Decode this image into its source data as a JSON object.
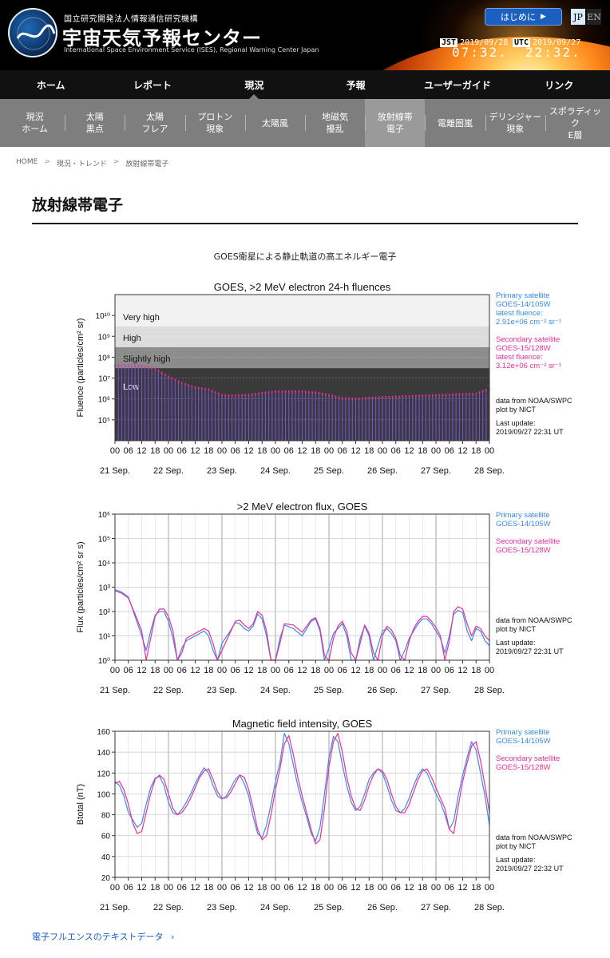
{
  "header": {
    "org_small": "国立研究開発法人情報通信研究機構",
    "org_title": "宇宙天気予報センター",
    "org_en": "International Space Environment Service (ISES), Regional Warning Center Japan",
    "logo_ring_text": "International Space Environment Service · Regional Warning Center Japan",
    "intro_button": "はじめに",
    "lang_jp": "JP",
    "lang_en": "EN",
    "jst_label": "JST",
    "jst_date": "2019/09/28",
    "jst_time": "07:32.",
    "utc_label": "UTC",
    "utc_date": "2019/09/27",
    "utc_time": "22:32."
  },
  "nav": [
    "ホーム",
    "レポート",
    "現況",
    "予報",
    "ユーザーガイド",
    "リンク"
  ],
  "nav_active_index": 2,
  "subnav": [
    [
      "現況",
      "ホーム"
    ],
    [
      "太陽",
      "黒点"
    ],
    [
      "太陽",
      "フレア"
    ],
    [
      "プロトン",
      "現象"
    ],
    [
      "太陽風"
    ],
    [
      "地磁気",
      "擾乱"
    ],
    [
      "放射線帯",
      "電子"
    ],
    [
      "電離圏嵐"
    ],
    [
      "デリンジャー",
      "現象"
    ],
    [
      "スポラディック",
      "E層"
    ]
  ],
  "subnav_active_index": 6,
  "breadcrumb": [
    "HOME",
    "現況・トレンド",
    "放射線帯電子"
  ],
  "page_title": "放射線帯電子",
  "subtitle": "GOES衛星による静止軌道の高エネルギー電子",
  "link_text": "電子フルエンスのテキストデータ",
  "colors": {
    "primary": "#3a8be8",
    "secondary": "#e8309a",
    "accent": "#1b5fbf"
  },
  "chart_data": [
    {
      "type": "bar",
      "title": "GOES, >2 MeV electron 24-h fluences",
      "ylabel": "Fluence (particles/cm² sr)",
      "y_scale": "log",
      "ylim": [
        10000,
        100000000000
      ],
      "y_tick_labels": [
        "10⁵",
        "10⁶",
        "10⁷",
        "10⁸",
        "10⁹",
        "10¹⁰"
      ],
      "x_hour_labels": [
        "00",
        "06",
        "12",
        "18",
        "00",
        "06",
        "12",
        "18",
        "00",
        "06",
        "12",
        "18",
        "00",
        "06",
        "12",
        "18",
        "00",
        "06",
        "12",
        "18",
        "00",
        "06",
        "12",
        "18",
        "00",
        "06",
        "12",
        "18",
        "00"
      ],
      "x_day_labels": [
        "21 Sep.",
        "22 Sep.",
        "23 Sep.",
        "24 Sep.",
        "25 Sep.",
        "26 Sep.",
        "27 Sep.",
        "28 Sep."
      ],
      "bands": [
        {
          "label": "Very high",
          "from": 3000000000.0,
          "to": 100000000000.0
        },
        {
          "label": "High",
          "from": 300000000.0,
          "to": 3000000000.0
        },
        {
          "label": "Slightly high",
          "from": 30000000.0,
          "to": 300000000.0
        },
        {
          "label": "Low",
          "from": 10000,
          "to": 30000000.0
        }
      ],
      "series_points": {
        "hours": [
          0,
          6,
          12,
          18,
          24,
          30,
          36,
          42,
          48,
          54,
          60,
          66,
          72,
          78,
          84,
          90,
          96,
          102,
          108,
          114,
          120,
          126,
          132,
          138,
          144,
          150,
          156,
          162,
          166,
          168
        ],
        "log10_values": [
          7.6,
          7.6,
          7.58,
          7.45,
          7.05,
          6.75,
          6.55,
          6.45,
          6.18,
          6.15,
          6.18,
          6.28,
          6.35,
          6.35,
          6.35,
          6.3,
          6.18,
          6.03,
          6.0,
          6.05,
          6.08,
          6.1,
          6.13,
          6.15,
          6.17,
          6.2,
          6.22,
          6.25,
          6.42,
          6.47
        ]
      },
      "legend": [
        {
          "lines": [
            "Primary satellite",
            "GOES-14/105W",
            "latest fluence:",
            "2.91e+06 cm⁻² sr⁻¹"
          ],
          "color": "#3a8be8"
        },
        {
          "lines": [
            "Secondary satellite",
            "GOES-15/128W",
            "latest fluence:",
            "3.12e+06 cm⁻² sr⁻¹"
          ],
          "color": "#e8309a"
        }
      ],
      "notes": [
        "data from NOAA/SWPC",
        "plot by NICT",
        "Last update:",
        "2019/09/27 22:31 UT"
      ]
    },
    {
      "type": "line",
      "title": ">2 MeV electron flux, GOES",
      "ylabel": "Flux (particles/cm² sr s)",
      "y_scale": "log",
      "ylim": [
        1,
        1000000
      ],
      "y_tick_labels": [
        "10⁰",
        "10¹",
        "10²",
        "10³",
        "10⁴",
        "10⁵",
        "10⁶"
      ],
      "x_hour_labels": [
        "00",
        "06",
        "12",
        "18",
        "00",
        "06",
        "12",
        "18",
        "00",
        "06",
        "12",
        "18",
        "00",
        "06",
        "12",
        "18",
        "00",
        "06",
        "12",
        "18",
        "00",
        "06",
        "12",
        "18",
        "00",
        "06",
        "12",
        "18",
        "00"
      ],
      "x_day_labels": [
        "21 Sep.",
        "22 Sep.",
        "23 Sep.",
        "24 Sep.",
        "25 Sep.",
        "26 Sep.",
        "27 Sep.",
        "28 Sep."
      ],
      "series": [
        {
          "name": "GOES-14/105W",
          "color": "#3a8be8",
          "hours": [
            0,
            3,
            6,
            9,
            12,
            14,
            16,
            18,
            20,
            22,
            24,
            26,
            28,
            30,
            32,
            36,
            40,
            42,
            44,
            46,
            48,
            51,
            54,
            56,
            58,
            60,
            62,
            64,
            66,
            68,
            70,
            72,
            74,
            76,
            80,
            84,
            88,
            90,
            92,
            94,
            96,
            98,
            100,
            102,
            104,
            106,
            108,
            110,
            112,
            114,
            116,
            118,
            120,
            122,
            124,
            126,
            128,
            130,
            132,
            134,
            136,
            138,
            140,
            142,
            144,
            146,
            148,
            150,
            152,
            154,
            156,
            158,
            160,
            162,
            164,
            166,
            168
          ],
          "log10_values": [
            2.9,
            2.8,
            2.6,
            1.8,
            1.0,
            0.4,
            1.2,
            1.85,
            2.0,
            2.0,
            1.6,
            0.9,
            0.0,
            0.5,
            0.8,
            1.0,
            1.2,
            1.0,
            0.4,
            0.0,
            0.7,
            1.1,
            1.55,
            1.5,
            1.3,
            1.2,
            1.4,
            1.9,
            1.7,
            1.0,
            0.0,
            0.0,
            0.9,
            1.45,
            1.3,
            1.0,
            1.6,
            1.7,
            1.2,
            0.0,
            0.5,
            1.1,
            1.3,
            1.5,
            1.0,
            0.0,
            0.0,
            0.9,
            1.4,
            1.0,
            0.0,
            0.6,
            1.2,
            1.3,
            1.1,
            0.8,
            0.0,
            0.4,
            0.9,
            1.2,
            1.5,
            1.7,
            1.7,
            1.5,
            1.2,
            0.9,
            0.3,
            1.0,
            1.9,
            2.05,
            1.95,
            1.2,
            0.8,
            1.3,
            1.2,
            0.8,
            0.6
          ]
        },
        {
          "name": "GOES-15/128W",
          "color": "#e8309a",
          "hours": [
            0,
            3,
            6,
            9,
            12,
            14,
            16,
            18,
            20,
            22,
            24,
            26,
            28,
            30,
            32,
            36,
            40,
            42,
            44,
            46,
            48,
            51,
            54,
            56,
            58,
            60,
            62,
            64,
            66,
            68,
            70,
            72,
            74,
            76,
            80,
            84,
            88,
            90,
            92,
            94,
            96,
            98,
            100,
            102,
            104,
            106,
            108,
            110,
            112,
            114,
            116,
            118,
            120,
            122,
            124,
            126,
            128,
            130,
            132,
            134,
            136,
            138,
            140,
            142,
            144,
            146,
            148,
            150,
            152,
            154,
            156,
            158,
            160,
            162,
            164,
            166,
            168
          ],
          "log10_values": [
            2.85,
            2.75,
            2.55,
            1.9,
            1.2,
            0.0,
            0.9,
            1.8,
            2.1,
            2.1,
            1.8,
            1.2,
            0.0,
            0.3,
            0.9,
            1.1,
            1.3,
            1.2,
            0.7,
            0.0,
            0.4,
            1.0,
            1.6,
            1.65,
            1.45,
            1.3,
            1.5,
            2.0,
            1.85,
            1.2,
            0.0,
            0.0,
            0.7,
            1.5,
            1.45,
            1.15,
            1.65,
            1.75,
            1.3,
            0.2,
            0.0,
            0.9,
            1.4,
            1.6,
            1.2,
            0.3,
            0.0,
            0.7,
            1.45,
            1.1,
            0.3,
            0.0,
            1.0,
            1.4,
            1.25,
            0.9,
            0.2,
            0.0,
            0.8,
            1.3,
            1.6,
            1.8,
            1.8,
            1.6,
            1.35,
            1.0,
            0.0,
            0.8,
            2.0,
            2.2,
            2.1,
            1.5,
            1.0,
            1.4,
            1.3,
            1.0,
            0.8
          ]
        }
      ],
      "legend": [
        {
          "lines": [
            "Primary satellite",
            "GOES-14/105W"
          ],
          "color": "#3a8be8"
        },
        {
          "lines": [
            "Secondary satellite",
            "GOES-15/128W"
          ],
          "color": "#e8309a"
        }
      ],
      "notes": [
        "data from NOAA/SWPC",
        "plot by NICT",
        "Last update:",
        "2019/09/27 22:31 UT"
      ]
    },
    {
      "type": "line",
      "title": "Magnetic field intensity, GOES",
      "ylabel": "Btotal (nT)",
      "y_scale": "linear",
      "ylim": [
        20,
        160
      ],
      "y_tick_labels": [
        "20",
        "40",
        "60",
        "80",
        "100",
        "120",
        "140",
        "160"
      ],
      "x_hour_labels": [
        "00",
        "06",
        "12",
        "18",
        "00",
        "06",
        "12",
        "18",
        "00",
        "06",
        "12",
        "18",
        "00",
        "06",
        "12",
        "18",
        "00",
        "06",
        "12",
        "18",
        "00",
        "06",
        "12",
        "18",
        "00",
        "06",
        "12",
        "18",
        "00"
      ],
      "x_day_labels": [
        "21 Sep.",
        "22 Sep.",
        "23 Sep.",
        "24 Sep.",
        "25 Sep.",
        "26 Sep.",
        "27 Sep.",
        "28 Sep."
      ],
      "series": [
        {
          "name": "GOES-14/105W",
          "color": "#3a8be8",
          "hours": [
            0,
            2,
            4,
            6,
            8,
            10,
            12,
            14,
            16,
            18,
            20,
            22,
            24,
            26,
            28,
            30,
            32,
            34,
            36,
            38,
            40,
            42,
            44,
            46,
            48,
            50,
            52,
            54,
            56,
            58,
            60,
            62,
            64,
            66,
            68,
            70,
            72,
            74,
            76,
            78,
            80,
            82,
            84,
            86,
            88,
            90,
            92,
            94,
            96,
            98,
            100,
            102,
            104,
            106,
            108,
            110,
            112,
            114,
            116,
            118,
            120,
            122,
            124,
            126,
            128,
            130,
            132,
            134,
            136,
            138,
            140,
            142,
            144,
            146,
            148,
            150,
            152,
            154,
            156,
            158,
            160,
            162,
            164,
            166,
            168
          ],
          "values": [
            112,
            108,
            98,
            82,
            75,
            68,
            72,
            90,
            106,
            115,
            117,
            108,
            92,
            82,
            80,
            85,
            92,
            100,
            110,
            118,
            125,
            120,
            108,
            98,
            95,
            98,
            106,
            114,
            118,
            110,
            98,
            78,
            62,
            58,
            70,
            90,
            112,
            130,
            158,
            148,
            128,
            108,
            92,
            78,
            62,
            55,
            68,
            100,
            135,
            155,
            150,
            128,
            108,
            92,
            84,
            88,
            100,
            114,
            120,
            124,
            120,
            108,
            94,
            84,
            82,
            86,
            96,
            108,
            118,
            124,
            120,
            110,
            100,
            92,
            80,
            66,
            74,
            98,
            118,
            135,
            150,
            142,
            120,
            98,
            70
          ]
        },
        {
          "name": "GOES-15/128W",
          "color": "#e8309a",
          "hours": [
            0,
            2,
            4,
            6,
            8,
            10,
            12,
            14,
            16,
            18,
            20,
            22,
            24,
            26,
            28,
            30,
            32,
            34,
            36,
            38,
            40,
            42,
            44,
            46,
            48,
            50,
            52,
            54,
            56,
            58,
            60,
            62,
            64,
            66,
            68,
            70,
            72,
            74,
            76,
            78,
            80,
            82,
            84,
            86,
            88,
            90,
            92,
            94,
            96,
            98,
            100,
            102,
            104,
            106,
            108,
            110,
            112,
            114,
            116,
            118,
            120,
            122,
            124,
            126,
            128,
            130,
            132,
            134,
            136,
            138,
            140,
            142,
            144,
            146,
            148,
            150,
            152,
            154,
            156,
            158,
            160,
            162,
            164,
            166,
            168
          ],
          "values": [
            110,
            112,
            104,
            90,
            72,
            62,
            64,
            82,
            100,
            114,
            118,
            114,
            100,
            86,
            80,
            82,
            88,
            96,
            106,
            116,
            122,
            124,
            114,
            102,
            96,
            96,
            102,
            110,
            118,
            116,
            104,
            86,
            66,
            56,
            60,
            80,
            104,
            124,
            148,
            156,
            138,
            116,
            98,
            82,
            66,
            52,
            56,
            86,
            126,
            150,
            158,
            140,
            116,
            98,
            86,
            84,
            94,
            108,
            118,
            124,
            122,
            114,
            100,
            88,
            82,
            82,
            90,
            102,
            114,
            122,
            124,
            116,
            106,
            96,
            86,
            66,
            62,
            88,
            112,
            130,
            146,
            150,
            132,
            108,
            82
          ]
        }
      ],
      "legend": [
        {
          "lines": [
            "Primary satellite",
            "GOES-14/105W"
          ],
          "color": "#3a8be8"
        },
        {
          "lines": [
            "Secondary satellite",
            "GOES-15/128W"
          ],
          "color": "#e8309a"
        }
      ],
      "notes": [
        "data from NOAA/SWPC",
        "plot by NICT",
        "Last update:",
        "2019/09/27 22:32 UT"
      ]
    }
  ]
}
